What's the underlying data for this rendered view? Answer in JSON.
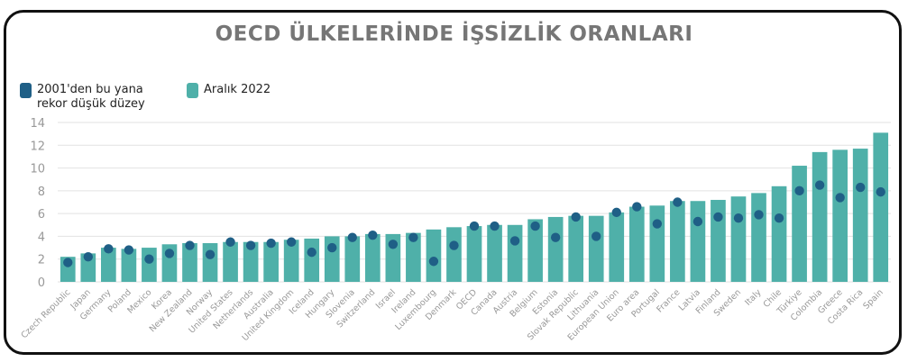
{
  "chart_data": {
    "type": "bar",
    "title": "OECD ÜLKELERİNDE İŞSİZLİK ORANLARI",
    "colors": {
      "bar": "#4fb0a9",
      "dot": "#1f5f86",
      "grid": "#e2e2e2",
      "tick": "#999999"
    },
    "ylim": [
      0,
      14
    ],
    "yticks": [
      "0",
      "2",
      "4",
      "6",
      "8",
      "10",
      "12",
      "14"
    ],
    "legend": {
      "placement": "top-left"
    },
    "categories": [
      "Czech Republic",
      "Japan",
      "Germany",
      "Poland",
      "Mexico",
      "Korea",
      "New Zealand",
      "Norway",
      "United States",
      "Netherlands",
      "Australia",
      "United Kingdom",
      "Iceland",
      "Hungary",
      "Slovenia",
      "Switzerland",
      "Israel",
      "Ireland",
      "Luxembourg",
      "Denmark",
      "OECD",
      "Canada",
      "Austria",
      "Belgium",
      "Estonia",
      "Slovak Republic",
      "Lithuania",
      "European Union",
      "Euro area",
      "Portugal",
      "France",
      "Latvia",
      "Finland",
      "Sweden",
      "Italy",
      "Chile",
      "Türkiye",
      "Colombia",
      "Greece",
      "Costa Rica",
      "Spain"
    ],
    "series": [
      {
        "name": "Aralık 2022",
        "kind": "bar",
        "values": [
          2.2,
          2.5,
          3.0,
          2.9,
          3.0,
          3.3,
          3.4,
          3.4,
          3.5,
          3.5,
          3.5,
          3.7,
          3.8,
          4.0,
          4.0,
          4.2,
          4.2,
          4.3,
          4.6,
          4.8,
          4.9,
          5.0,
          5.0,
          5.5,
          5.7,
          5.8,
          5.8,
          6.1,
          6.6,
          6.7,
          7.1,
          7.1,
          7.2,
          7.5,
          7.8,
          8.4,
          10.2,
          11.4,
          11.6,
          11.7,
          13.1
        ]
      },
      {
        "name": "2001'den bu yana rekor düşük düzey",
        "kind": "dot",
        "values": [
          1.7,
          2.2,
          2.9,
          2.8,
          2.0,
          2.5,
          3.2,
          2.4,
          3.5,
          3.2,
          3.4,
          3.5,
          2.6,
          3.0,
          3.9,
          4.1,
          3.3,
          3.9,
          1.8,
          3.2,
          4.9,
          4.9,
          3.6,
          4.9,
          3.9,
          5.7,
          4.0,
          6.1,
          6.6,
          5.1,
          7.0,
          5.3,
          5.7,
          5.6,
          5.9,
          5.6,
          8.0,
          8.5,
          7.4,
          8.3,
          7.9
        ]
      }
    ]
  }
}
